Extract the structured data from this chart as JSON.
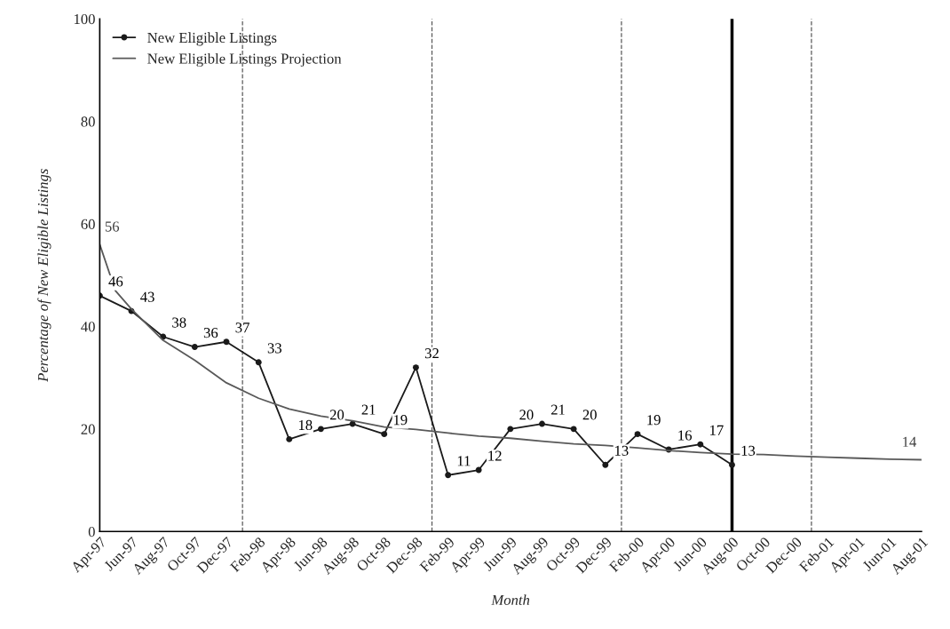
{
  "chart_data": {
    "type": "line",
    "xlabel": "Month",
    "ylabel": "Percentage of New Eligible Listings",
    "x": [
      "1997-04",
      "1997-06",
      "1997-08",
      "1997-10",
      "1997-12",
      "1998-02",
      "1998-04",
      "1998-06",
      "1998-08",
      "1998-10",
      "1998-12",
      "1999-02",
      "1999-04",
      "1999-06",
      "1999-08",
      "1999-10",
      "1999-12",
      "2000-02",
      "2000-04",
      "2000-06",
      "2000-08"
    ],
    "series": [
      {
        "name": "New Eligible Listings",
        "color": "#1a1a1a",
        "marker": "circle",
        "values": [
          46,
          43,
          38,
          36,
          37,
          33,
          18,
          20,
          21,
          19,
          32,
          11,
          12,
          20,
          21,
          20,
          13,
          19,
          16,
          17,
          13
        ],
        "value_labels": [
          "46",
          "43",
          "38",
          "36",
          "37",
          "33",
          "18",
          "20",
          "21",
          "19",
          "32",
          "11",
          "12",
          "20",
          "21",
          "20",
          "13",
          "19",
          "16",
          "17",
          "13"
        ]
      },
      {
        "name": "New Eligible Listings Projection",
        "color": "#595959",
        "marker": "none",
        "x": [
          "1997-04",
          "1997-05",
          "1997-06",
          "1997-08",
          "1997-10",
          "1997-12",
          "1998-02",
          "1998-04",
          "1998-06",
          "1998-08",
          "1998-10",
          "1998-12",
          "1999-02",
          "1999-04",
          "1999-06",
          "1999-08",
          "1999-10",
          "1999-12",
          "2000-02",
          "2000-04",
          "2000-06",
          "2000-08",
          "2000-10",
          "2000-12",
          "2001-02",
          "2001-04",
          "2001-06",
          "2001-08"
        ],
        "values": [
          56,
          47,
          43.4,
          37.3,
          33.4,
          29,
          26,
          23.9,
          22.5,
          21.6,
          20.4,
          19.9,
          19.2,
          18.6,
          18.2,
          17.6,
          17.1,
          16.8,
          16.3,
          15.8,
          15.4,
          15.1,
          15,
          14.7,
          14.5,
          14.3,
          14.1,
          14
        ],
        "value_labels": [
          "56",
          null,
          null,
          null,
          null,
          null,
          null,
          null,
          null,
          null,
          null,
          null,
          null,
          null,
          null,
          null,
          null,
          null,
          null,
          null,
          null,
          null,
          null,
          null,
          null,
          null,
          null,
          "14"
        ]
      }
    ],
    "xlim": [
      "1997-04",
      "2001-08"
    ],
    "xticks": [
      {
        "value": "1997-04",
        "label": "Apr-97"
      },
      {
        "value": "1997-06",
        "label": "Jun-97"
      },
      {
        "value": "1997-08",
        "label": "Aug-97"
      },
      {
        "value": "1997-10",
        "label": "Oct-97"
      },
      {
        "value": "1997-12",
        "label": "Dec-97"
      },
      {
        "value": "1998-02",
        "label": "Feb-98"
      },
      {
        "value": "1998-04",
        "label": "Apr-98"
      },
      {
        "value": "1998-06",
        "label": "Jun-98"
      },
      {
        "value": "1998-08",
        "label": "Aug-98"
      },
      {
        "value": "1998-10",
        "label": "Oct-98"
      },
      {
        "value": "1998-12",
        "label": "Dec-98"
      },
      {
        "value": "1999-02",
        "label": "Feb-99"
      },
      {
        "value": "1999-04",
        "label": "Apr-99"
      },
      {
        "value": "1999-06",
        "label": "Jun-99"
      },
      {
        "value": "1999-08",
        "label": "Aug-99"
      },
      {
        "value": "1999-10",
        "label": "Oct-99"
      },
      {
        "value": "1999-12",
        "label": "Dec-99"
      },
      {
        "value": "2000-02",
        "label": "Feb-00"
      },
      {
        "value": "2000-04",
        "label": "Apr-00"
      },
      {
        "value": "2000-06",
        "label": "Jun-00"
      },
      {
        "value": "2000-08",
        "label": "Aug-00"
      },
      {
        "value": "2000-10",
        "label": "Oct-00"
      },
      {
        "value": "2000-12",
        "label": "Dec-00"
      },
      {
        "value": "2001-02",
        "label": "Feb-01"
      },
      {
        "value": "2001-04",
        "label": "Apr-01"
      },
      {
        "value": "2001-06",
        "label": "Jun-01"
      },
      {
        "value": "2001-08",
        "label": "Aug-01"
      }
    ],
    "ylim": [
      0,
      100
    ],
    "yticks": [
      0,
      20,
      40,
      60,
      80,
      100
    ],
    "ref_lines": [
      {
        "axis": "x",
        "value": "1998-01",
        "line_style": "dashed",
        "color": "#595959"
      },
      {
        "axis": "x",
        "value": "1999-01",
        "line_style": "dashed",
        "color": "#595959"
      },
      {
        "axis": "x",
        "value": "2000-01",
        "line_style": "dashed",
        "color": "#595959"
      },
      {
        "axis": "x",
        "value": "2000-08",
        "line_style": "solid",
        "color": "#000000"
      },
      {
        "axis": "x",
        "value": "2001-01",
        "line_style": "dashed",
        "color": "#595959"
      }
    ],
    "grid": false,
    "legend": "top left",
    "line_style": "solid"
  }
}
